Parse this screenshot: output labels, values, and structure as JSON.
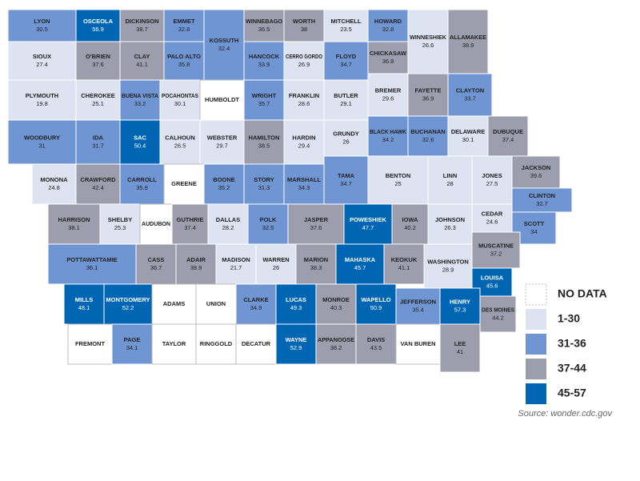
{
  "map": {
    "counties": [
      {
        "name": "LYON",
        "value": 30.5
      },
      {
        "name": "OSCEOLA",
        "value": 56.9
      },
      {
        "name": "DICKINSON",
        "value": 38.7
      },
      {
        "name": "EMMET",
        "value": 32.8
      },
      {
        "name": "KOSSUTH",
        "value": 32.4
      },
      {
        "name": "WINNEBAGO",
        "value": 36.5
      },
      {
        "name": "WORTH",
        "value": 38
      },
      {
        "name": "MITCHELL",
        "value": 23.5
      },
      {
        "name": "HOWARD",
        "value": 32.8
      },
      {
        "name": "WINNESHIEK",
        "value": 26.6
      },
      {
        "name": "ALLAMAKEE",
        "value": 38.9
      },
      {
        "name": "SIOUX",
        "value": 27.4
      },
      {
        "name": "O'BRIEN",
        "value": 37.6
      },
      {
        "name": "CLAY",
        "value": 41.1
      },
      {
        "name": "PALO ALTO",
        "value": 35.8
      },
      {
        "name": "HANCOCK",
        "value": 33.9
      },
      {
        "name": "CERRO GORDO",
        "value": 26.9
      },
      {
        "name": "FLOYD",
        "value": 34.7
      },
      {
        "name": "CHICKASAW",
        "value": 36.8
      },
      {
        "name": "PLYMOUTH",
        "value": 19.8
      },
      {
        "name": "CHEROKEE",
        "value": 25.1
      },
      {
        "name": "BUENA VISTA",
        "value": 33.2
      },
      {
        "name": "POCAHONTAS",
        "value": 30.1
      },
      {
        "name": "HUMBOLDT",
        "value": null
      },
      {
        "name": "WRIGHT",
        "value": 35.7
      },
      {
        "name": "FRANKLIN",
        "value": 28.6
      },
      {
        "name": "BUTLER",
        "value": 29.1
      },
      {
        "name": "BREMER",
        "value": 29.6
      },
      {
        "name": "FAYETTE",
        "value": 36.9
      },
      {
        "name": "CLAYTON",
        "value": 33.7
      },
      {
        "name": "WOODBURY",
        "value": 31
      },
      {
        "name": "IDA",
        "value": 31.7
      },
      {
        "name": "SAC",
        "value": 50.4
      },
      {
        "name": "CALHOUN",
        "value": 26.5
      },
      {
        "name": "WEBSTER",
        "value": 29.7
      },
      {
        "name": "HAMILTON",
        "value": 38.5
      },
      {
        "name": "HARDIN",
        "value": 29.4
      },
      {
        "name": "GRUNDY",
        "value": 26
      },
      {
        "name": "BLACK HAWK",
        "value": 34.2
      },
      {
        "name": "BUCHANAN",
        "value": 32.6
      },
      {
        "name": "DELAWARE",
        "value": 30.1
      },
      {
        "name": "DUBUQUE",
        "value": 37.4
      },
      {
        "name": "MONONA",
        "value": 24.8
      },
      {
        "name": "CRAWFORD",
        "value": 42.4
      },
      {
        "name": "CARROLL",
        "value": 35.9
      },
      {
        "name": "GREENE",
        "value": null
      },
      {
        "name": "BOONE",
        "value": 35.2
      },
      {
        "name": "STORY",
        "value": 31.3
      },
      {
        "name": "MARSHALL",
        "value": 34.3
      },
      {
        "name": "TAMA",
        "value": 34.7
      },
      {
        "name": "BENTON",
        "value": 25
      },
      {
        "name": "LINN",
        "value": 28
      },
      {
        "name": "JONES",
        "value": 27.5
      },
      {
        "name": "JACKSON",
        "value": 39.6
      },
      {
        "name": "HARRISON",
        "value": 38.1
      },
      {
        "name": "SHELBY",
        "value": 25.3
      },
      {
        "name": "AUDUBON",
        "value": null
      },
      {
        "name": "GUTHRIE",
        "value": 37.4
      },
      {
        "name": "DALLAS",
        "value": 28.2
      },
      {
        "name": "POLK",
        "value": 32.5
      },
      {
        "name": "JASPER",
        "value": 37.6
      },
      {
        "name": "POWESHIEK",
        "value": 47.7
      },
      {
        "name": "IOWA",
        "value": 40.2
      },
      {
        "name": "JOHNSON",
        "value": 26.3
      },
      {
        "name": "CEDAR",
        "value": 24.6
      },
      {
        "name": "CLINTON",
        "value": 32.7
      },
      {
        "name": "SCOTT",
        "value": 34
      },
      {
        "name": "MUSCATINE",
        "value": 37.2
      },
      {
        "name": "POTTAWATTAMIE",
        "value": 36.1
      },
      {
        "name": "CASS",
        "value": 36.7
      },
      {
        "name": "ADAIR",
        "value": 39.9
      },
      {
        "name": "MADISON",
        "value": 21.7
      },
      {
        "name": "WARREN",
        "value": 26
      },
      {
        "name": "MARION",
        "value": 38.3
      },
      {
        "name": "MAHASKA",
        "value": 45.7
      },
      {
        "name": "KEOKUK",
        "value": 41.1
      },
      {
        "name": "WASHINGTON",
        "value": 28.9
      },
      {
        "name": "LOUISA",
        "value": 45.6
      },
      {
        "name": "MILLS",
        "value": 48.1
      },
      {
        "name": "MONTGOMERY",
        "value": 52.2
      },
      {
        "name": "ADAMS",
        "value": null
      },
      {
        "name": "UNION",
        "value": null
      },
      {
        "name": "CLARKE",
        "value": 34.9
      },
      {
        "name": "LUCAS",
        "value": 49.3
      },
      {
        "name": "MONROE",
        "value": 40.3
      },
      {
        "name": "WAPELLO",
        "value": 50.9
      },
      {
        "name": "JEFFERSON",
        "value": 35.4
      },
      {
        "name": "HENRY",
        "value": 57.3
      },
      {
        "name": "DES MOINES",
        "value": 44.2
      },
      {
        "name": "FREMONT",
        "value": null
      },
      {
        "name": "PAGE",
        "value": 34.1
      },
      {
        "name": "TAYLOR",
        "value": null
      },
      {
        "name": "RINGGOLD",
        "value": null
      },
      {
        "name": "DECATUR",
        "value": null
      },
      {
        "name": "WAYNE",
        "value": 52.9
      },
      {
        "name": "APPANOOSE",
        "value": 38.2
      },
      {
        "name": "DAVIS",
        "value": 43.5
      },
      {
        "name": "VAN BUREN",
        "value": null
      },
      {
        "name": "LEE",
        "value": 41
      }
    ],
    "legend": [
      {
        "label": "NO DATA",
        "color": "#ffffff"
      },
      {
        "label": "1-30",
        "color": "#dde3f1"
      },
      {
        "label": "31-36",
        "color": "#6f95d3"
      },
      {
        "label": "37-44",
        "color": "#9c9eae"
      },
      {
        "label": "45-57",
        "color": "#0066b3"
      }
    ],
    "source": "Source: wonder.cdc.gov"
  }
}
